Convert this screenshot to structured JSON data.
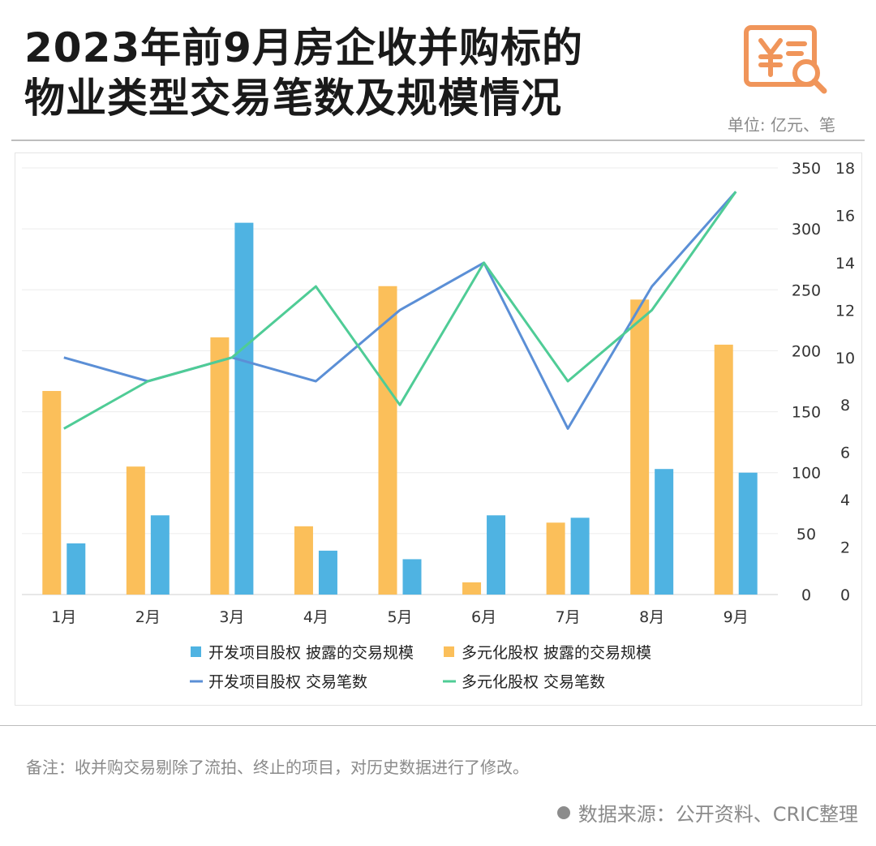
{
  "header": {
    "title_line1": "2023年前9月房企收并购标的",
    "title_line2": "物业类型交易笔数及规模情况",
    "unit": "单位: 亿元、笔",
    "logo_icon": "yen-document-search-icon"
  },
  "colors": {
    "bar_dev": "#4fb3e2",
    "bar_multi": "#fbbf5a",
    "line_dev": "#5b8fd6",
    "line_multi": "#4fcc96",
    "logo": "#f0955a"
  },
  "chart_data": {
    "type": "bar",
    "categories": [
      "1月",
      "2月",
      "3月",
      "4月",
      "5月",
      "6月",
      "7月",
      "8月",
      "9月"
    ],
    "series": [
      {
        "name": "多元化股权 披露的交易规模",
        "kind": "bar",
        "axis": "left",
        "values": [
          167,
          105,
          211,
          56,
          253,
          10,
          59,
          242,
          205
        ]
      },
      {
        "name": "开发项目股权 披露的交易规模",
        "kind": "bar",
        "axis": "left",
        "values": [
          42,
          65,
          305,
          36,
          29,
          65,
          63,
          103,
          100
        ]
      },
      {
        "name": "开发项目股权 交易笔数",
        "kind": "line",
        "axis": "right",
        "values": [
          10,
          9,
          10,
          9,
          12,
          14,
          7,
          13,
          17
        ]
      },
      {
        "name": "多元化股权 交易笔数",
        "kind": "line",
        "axis": "right",
        "values": [
          7,
          9,
          10,
          13,
          8,
          14,
          9,
          12,
          17
        ]
      }
    ],
    "ylim_left": [
      0,
      350
    ],
    "yticks_left": [
      "350",
      "300",
      "250",
      "200",
      "150",
      "100",
      "50",
      "0"
    ],
    "ylim_right": [
      0,
      18
    ],
    "yticks_right": [
      "18",
      "16",
      "14",
      "12",
      "10",
      "8",
      "6",
      "4",
      "2",
      "0"
    ],
    "grid": true,
    "legend_position": "bottom",
    "legend": [
      "开发项目股权 披露的交易规模",
      "多元化股权 披露的交易规模",
      "开发项目股权 交易笔数",
      "多元化股权 交易笔数"
    ]
  },
  "footer": {
    "note": "备注：收并购交易剔除了流拍、终止的项目，对历史数据进行了修改。",
    "source": "数据来源：公开资料、CRIC整理"
  }
}
